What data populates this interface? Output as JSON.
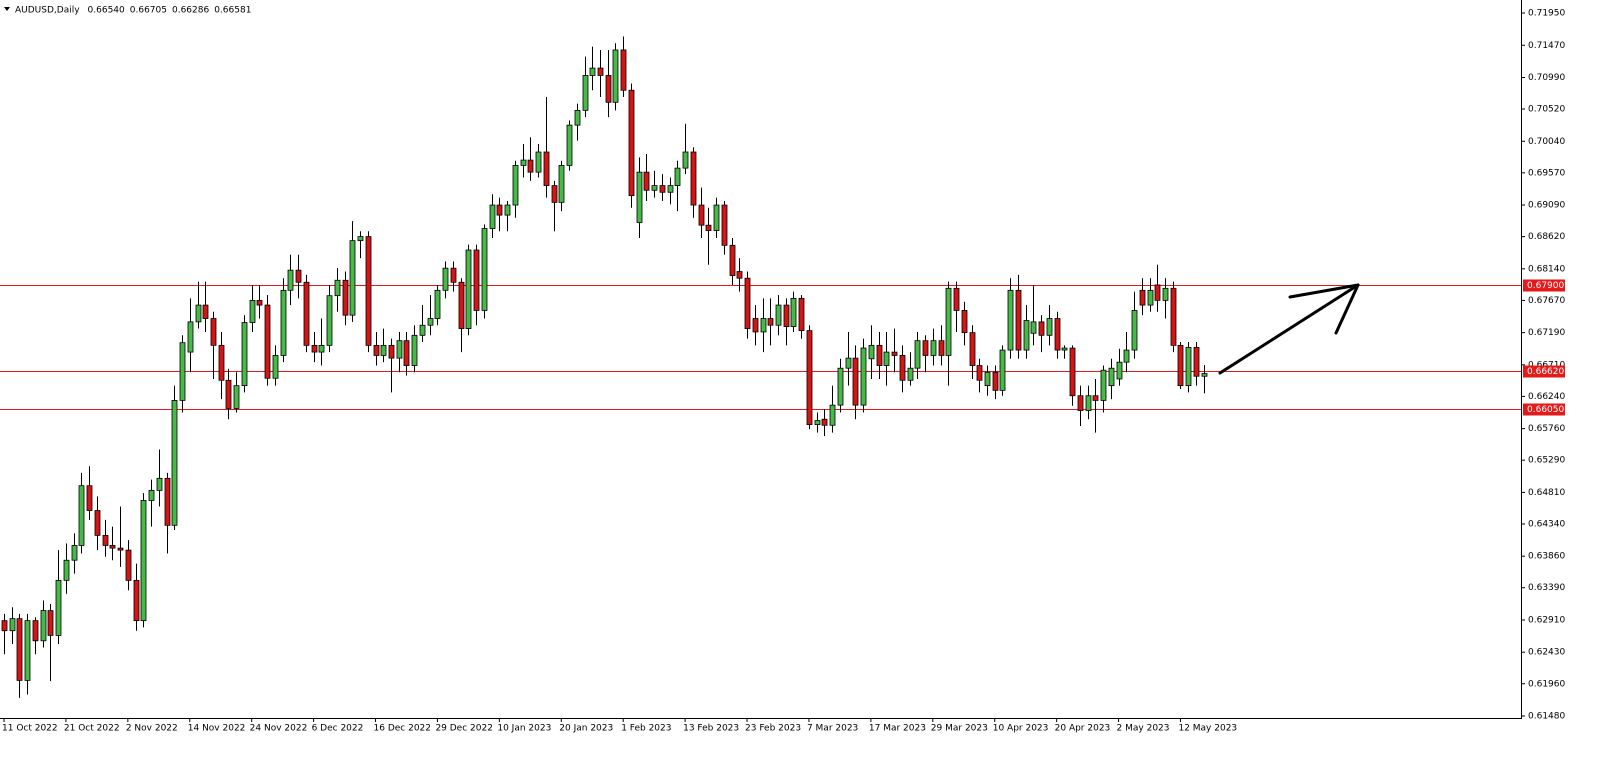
{
  "chart_data": {
    "type": "candlestick",
    "title": "AUDUSD,Daily",
    "header_values": [
      "0.66540",
      "0.66705",
      "0.66286",
      "0.66581"
    ],
    "up_color": "#46b946",
    "down_color": "#d41515",
    "level_color": "#e31a1a",
    "categories": [
      "11 Oct 2022",
      null,
      null,
      null,
      null,
      null,
      null,
      null,
      "21 Oct 2022",
      null,
      null,
      null,
      null,
      null,
      null,
      null,
      "2 Nov 2022",
      null,
      null,
      null,
      null,
      null,
      null,
      null,
      "14 Nov 2022",
      null,
      null,
      null,
      null,
      null,
      null,
      null,
      "24 Nov 2022",
      null,
      null,
      null,
      null,
      null,
      null,
      null,
      "6 Dec 2022",
      null,
      null,
      null,
      null,
      null,
      null,
      null,
      "16 Dec 2022",
      null,
      null,
      null,
      null,
      null,
      null,
      null,
      "29 Dec 2022",
      null,
      null,
      null,
      null,
      null,
      null,
      null,
      "10 Jan 2023",
      null,
      null,
      null,
      null,
      null,
      null,
      null,
      "20 Jan 2023",
      null,
      null,
      null,
      null,
      null,
      null,
      null,
      "1 Feb 2023",
      null,
      null,
      null,
      null,
      null,
      null,
      null,
      "13 Feb 2023",
      null,
      null,
      null,
      null,
      null,
      null,
      null,
      "23 Feb 2023",
      null,
      null,
      null,
      null,
      null,
      null,
      null,
      "7 Mar 2023",
      null,
      null,
      null,
      null,
      null,
      null,
      null,
      "17 Mar 2023",
      null,
      null,
      null,
      null,
      null,
      null,
      null,
      "29 Mar 2023",
      null,
      null,
      null,
      null,
      null,
      null,
      null,
      "10 Apr 2023",
      null,
      null,
      null,
      null,
      null,
      null,
      null,
      "20 Apr 2023",
      null,
      null,
      null,
      null,
      null,
      null,
      null,
      "2 May 2023",
      null,
      null,
      null,
      null,
      null,
      null,
      null,
      "12 May 2023",
      null,
      null,
      null
    ],
    "ohlc": [
      [
        0.629,
        0.63,
        0.624,
        0.6275
      ],
      [
        0.6275,
        0.631,
        0.6255,
        0.6293
      ],
      [
        0.6293,
        0.63,
        0.6175,
        0.6201
      ],
      [
        0.6201,
        0.63,
        0.618,
        0.629
      ],
      [
        0.629,
        0.6295,
        0.624,
        0.626
      ],
      [
        0.626,
        0.632,
        0.625,
        0.6305
      ],
      [
        0.6305,
        0.6315,
        0.62,
        0.6268
      ],
      [
        0.6268,
        0.6395,
        0.6255,
        0.635
      ],
      [
        0.635,
        0.6405,
        0.633,
        0.638
      ],
      [
        0.638,
        0.642,
        0.636,
        0.6402
      ],
      [
        0.6402,
        0.651,
        0.639,
        0.6491
      ],
      [
        0.6491,
        0.652,
        0.644,
        0.6454
      ],
      [
        0.6454,
        0.6475,
        0.6395,
        0.6417
      ],
      [
        0.6417,
        0.644,
        0.6385,
        0.6402
      ],
      [
        0.6402,
        0.643,
        0.638,
        0.6398
      ],
      [
        0.6398,
        0.646,
        0.637,
        0.6395
      ],
      [
        0.6395,
        0.641,
        0.6335,
        0.635
      ],
      [
        0.635,
        0.6375,
        0.6275,
        0.629
      ],
      [
        0.629,
        0.648,
        0.628,
        0.6469
      ],
      [
        0.6469,
        0.65,
        0.643,
        0.6484
      ],
      [
        0.6484,
        0.6545,
        0.646,
        0.6502
      ],
      [
        0.6502,
        0.651,
        0.639,
        0.6432
      ],
      [
        0.6432,
        0.664,
        0.6425,
        0.6618
      ],
      [
        0.6618,
        0.6715,
        0.66,
        0.6704
      ],
      [
        0.669,
        0.677,
        0.666,
        0.6735
      ],
      [
        0.6735,
        0.6795,
        0.6725,
        0.676
      ],
      [
        0.676,
        0.6795,
        0.672,
        0.674
      ],
      [
        0.674,
        0.675,
        0.665,
        0.67
      ],
      [
        0.67,
        0.672,
        0.662,
        0.6648
      ],
      [
        0.6648,
        0.6665,
        0.659,
        0.6606
      ],
      [
        0.6606,
        0.666,
        0.66,
        0.664
      ],
      [
        0.664,
        0.6745,
        0.663,
        0.6734
      ],
      [
        0.6734,
        0.679,
        0.672,
        0.6767
      ],
      [
        0.6767,
        0.679,
        0.674,
        0.676
      ],
      [
        0.676,
        0.6775,
        0.664,
        0.6651
      ],
      [
        0.6651,
        0.67,
        0.664,
        0.6685
      ],
      [
        0.6685,
        0.68,
        0.6675,
        0.6782
      ],
      [
        0.6782,
        0.6835,
        0.676,
        0.6812
      ],
      [
        0.6812,
        0.6835,
        0.677,
        0.6794
      ],
      [
        0.6794,
        0.6805,
        0.669,
        0.67
      ],
      [
        0.67,
        0.672,
        0.6675,
        0.669
      ],
      [
        0.669,
        0.674,
        0.667,
        0.67
      ],
      [
        0.67,
        0.679,
        0.669,
        0.6774
      ],
      [
        0.6774,
        0.6815,
        0.675,
        0.6797
      ],
      [
        0.6797,
        0.681,
        0.673,
        0.6745
      ],
      [
        0.6745,
        0.6885,
        0.6735,
        0.6856
      ],
      [
        0.6856,
        0.687,
        0.683,
        0.6862
      ],
      [
        0.6862,
        0.687,
        0.669,
        0.67
      ],
      [
        0.67,
        0.672,
        0.667,
        0.6685
      ],
      [
        0.6685,
        0.6725,
        0.6675,
        0.67
      ],
      [
        0.67,
        0.671,
        0.663,
        0.6681
      ],
      [
        0.6681,
        0.672,
        0.666,
        0.6707
      ],
      [
        0.6707,
        0.672,
        0.6655,
        0.667
      ],
      [
        0.667,
        0.673,
        0.666,
        0.6715
      ],
      [
        0.6715,
        0.676,
        0.6705,
        0.673
      ],
      [
        0.673,
        0.6775,
        0.6715,
        0.674
      ],
      [
        0.674,
        0.679,
        0.673,
        0.6782
      ],
      [
        0.6782,
        0.6825,
        0.677,
        0.6815
      ],
      [
        0.6815,
        0.6825,
        0.678,
        0.6794
      ],
      [
        0.6794,
        0.68,
        0.669,
        0.6725
      ],
      [
        0.6725,
        0.685,
        0.6715,
        0.6842
      ],
      [
        0.6842,
        0.685,
        0.673,
        0.6752
      ],
      [
        0.6752,
        0.688,
        0.674,
        0.6874
      ],
      [
        0.6874,
        0.6925,
        0.686,
        0.6909
      ],
      [
        0.6909,
        0.692,
        0.687,
        0.6894
      ],
      [
        0.6894,
        0.6915,
        0.687,
        0.6909
      ],
      [
        0.6909,
        0.6975,
        0.689,
        0.6968
      ],
      [
        0.6968,
        0.7,
        0.695,
        0.6976
      ],
      [
        0.6976,
        0.701,
        0.6945,
        0.6958
      ],
      [
        0.6958,
        0.7,
        0.695,
        0.6988
      ],
      [
        0.6988,
        0.707,
        0.692,
        0.6938
      ],
      [
        0.6938,
        0.6945,
        0.687,
        0.6913
      ],
      [
        0.6913,
        0.6975,
        0.69,
        0.6968
      ],
      [
        0.6968,
        0.7035,
        0.696,
        0.7028
      ],
      [
        0.7028,
        0.706,
        0.7005,
        0.705
      ],
      [
        0.705,
        0.713,
        0.704,
        0.7102
      ],
      [
        0.7102,
        0.7145,
        0.708,
        0.7113
      ],
      [
        0.7113,
        0.714,
        0.707,
        0.7102
      ],
      [
        0.7102,
        0.714,
        0.704,
        0.7062
      ],
      [
        0.7062,
        0.715,
        0.705,
        0.714
      ],
      [
        0.714,
        0.716,
        0.707,
        0.708
      ],
      [
        0.708,
        0.709,
        0.6905,
        0.6923
      ],
      [
        0.6883,
        0.698,
        0.686,
        0.6958
      ],
      [
        0.6958,
        0.6985,
        0.6915,
        0.6931
      ],
      [
        0.6931,
        0.696,
        0.692,
        0.6938
      ],
      [
        0.6938,
        0.6955,
        0.6915,
        0.6928
      ],
      [
        0.6928,
        0.695,
        0.691,
        0.6938
      ],
      [
        0.6938,
        0.6975,
        0.69,
        0.6964
      ],
      [
        0.6964,
        0.703,
        0.6955,
        0.6988
      ],
      [
        0.6988,
        0.6995,
        0.689,
        0.6909
      ],
      [
        0.6909,
        0.6935,
        0.686,
        0.6879
      ],
      [
        0.6879,
        0.6905,
        0.682,
        0.6871
      ],
      [
        0.6871,
        0.692,
        0.686,
        0.6909
      ],
      [
        0.6909,
        0.6915,
        0.6835,
        0.6849
      ],
      [
        0.6849,
        0.686,
        0.679,
        0.6804
      ],
      [
        0.681,
        0.683,
        0.678,
        0.68
      ],
      [
        0.68,
        0.681,
        0.671,
        0.6725
      ],
      [
        0.674,
        0.676,
        0.67,
        0.672
      ],
      [
        0.672,
        0.677,
        0.669,
        0.674
      ],
      [
        0.674,
        0.677,
        0.67,
        0.673
      ],
      [
        0.673,
        0.6775,
        0.6715,
        0.676
      ],
      [
        0.676,
        0.677,
        0.67,
        0.6728
      ],
      [
        0.6728,
        0.678,
        0.672,
        0.677
      ],
      [
        0.677,
        0.6775,
        0.671,
        0.6722
      ],
      [
        0.6722,
        0.673,
        0.6575,
        0.6582
      ],
      [
        0.6582,
        0.66,
        0.657,
        0.6588
      ],
      [
        0.659,
        0.6605,
        0.6565,
        0.6581
      ],
      [
        0.6581,
        0.664,
        0.657,
        0.6611
      ],
      [
        0.6611,
        0.668,
        0.66,
        0.6666
      ],
      [
        0.6666,
        0.672,
        0.664,
        0.6681
      ],
      [
        0.6681,
        0.67,
        0.659,
        0.6611
      ],
      [
        0.6611,
        0.671,
        0.66,
        0.6696
      ],
      [
        0.668,
        0.673,
        0.665,
        0.67
      ],
      [
        0.67,
        0.672,
        0.665,
        0.667
      ],
      [
        0.667,
        0.672,
        0.664,
        0.669
      ],
      [
        0.669,
        0.6725,
        0.666,
        0.6685
      ],
      [
        0.6685,
        0.67,
        0.663,
        0.6648
      ],
      [
        0.6648,
        0.669,
        0.664,
        0.6666
      ],
      [
        0.6666,
        0.672,
        0.665,
        0.6707
      ],
      [
        0.6707,
        0.6715,
        0.666,
        0.6685
      ],
      [
        0.6685,
        0.6725,
        0.667,
        0.6707
      ],
      [
        0.6707,
        0.673,
        0.667,
        0.6685
      ],
      [
        0.6685,
        0.6795,
        0.664,
        0.6785
      ],
      [
        0.6785,
        0.6795,
        0.672,
        0.6752
      ],
      [
        0.6752,
        0.6765,
        0.67,
        0.6719
      ],
      [
        0.6719,
        0.673,
        0.665,
        0.667
      ],
      [
        0.667,
        0.668,
        0.663,
        0.6648
      ],
      [
        0.664,
        0.667,
        0.6625,
        0.666
      ],
      [
        0.666,
        0.667,
        0.662,
        0.6633
      ],
      [
        0.6633,
        0.67,
        0.6625,
        0.6693
      ],
      [
        0.6693,
        0.68,
        0.668,
        0.6782
      ],
      [
        0.6782,
        0.6805,
        0.668,
        0.6693
      ],
      [
        0.6693,
        0.676,
        0.668,
        0.6737
      ],
      [
        0.6718,
        0.679,
        0.67,
        0.6735
      ],
      [
        0.6735,
        0.6745,
        0.669,
        0.6715
      ],
      [
        0.6715,
        0.676,
        0.67,
        0.674
      ],
      [
        0.674,
        0.675,
        0.668,
        0.6693
      ],
      [
        0.6693,
        0.67,
        0.668,
        0.6696
      ],
      [
        0.6696,
        0.67,
        0.661,
        0.6625
      ],
      [
        0.6625,
        0.664,
        0.658,
        0.6603
      ],
      [
        0.6603,
        0.664,
        0.659,
        0.6625
      ],
      [
        0.6625,
        0.665,
        0.657,
        0.6618
      ],
      [
        0.6618,
        0.667,
        0.66,
        0.6663
      ],
      [
        0.664,
        0.668,
        0.662,
        0.6666
      ],
      [
        0.665,
        0.6695,
        0.664,
        0.6675
      ],
      [
        0.6675,
        0.672,
        0.666,
        0.6693
      ],
      [
        0.6693,
        0.678,
        0.668,
        0.6752
      ],
      [
        0.6782,
        0.68,
        0.6745,
        0.676
      ],
      [
        0.676,
        0.68,
        0.675,
        0.6782
      ],
      [
        0.679,
        0.682,
        0.675,
        0.6767
      ],
      [
        0.6767,
        0.68,
        0.674,
        0.6785
      ],
      [
        0.6785,
        0.6795,
        0.669,
        0.67
      ],
      [
        0.67,
        0.6705,
        0.6635,
        0.664
      ],
      [
        0.664,
        0.6705,
        0.663,
        0.6697
      ],
      [
        0.6697,
        0.6705,
        0.664,
        0.6654
      ],
      [
        0.6654,
        0.66705,
        0.66286,
        0.66581
      ]
    ],
    "ylim": [
      0.6145,
      0.72144
    ],
    "yticks": [
      {
        "value": 0.7195,
        "label": "0.71950"
      },
      {
        "value": 0.7147,
        "label": "0.71470"
      },
      {
        "value": 0.7099,
        "label": "0.70990"
      },
      {
        "value": 0.7052,
        "label": "0.70520"
      },
      {
        "value": 0.7004,
        "label": "0.70040"
      },
      {
        "value": 0.6957,
        "label": "0.69570"
      },
      {
        "value": 0.6909,
        "label": "0.69090"
      },
      {
        "value": 0.6862,
        "label": "0.68620"
      },
      {
        "value": 0.6814,
        "label": "0.68140"
      },
      {
        "value": 0.6767,
        "label": "0.67670"
      },
      {
        "value": 0.6719,
        "label": "0.67190"
      },
      {
        "value": 0.6671,
        "label": "0.66710"
      },
      {
        "value": 0.6624,
        "label": "0.66240"
      },
      {
        "value": 0.6576,
        "label": "0.65760"
      },
      {
        "value": 0.6529,
        "label": "0.65290"
      },
      {
        "value": 0.6481,
        "label": "0.64810"
      },
      {
        "value": 0.6434,
        "label": "0.64340"
      },
      {
        "value": 0.6386,
        "label": "0.63860"
      },
      {
        "value": 0.6339,
        "label": "0.63390"
      },
      {
        "value": 0.6291,
        "label": "0.62910"
      },
      {
        "value": 0.6243,
        "label": "0.62430"
      },
      {
        "value": 0.6196,
        "label": "0.61960"
      },
      {
        "value": 0.6148,
        "label": "0.61480"
      }
    ],
    "levels": [
      {
        "value": 0.679,
        "label": "0.67900"
      },
      {
        "value": 0.6662,
        "label": "0.66620"
      },
      {
        "value": 0.6605,
        "label": "0.66050"
      }
    ]
  }
}
